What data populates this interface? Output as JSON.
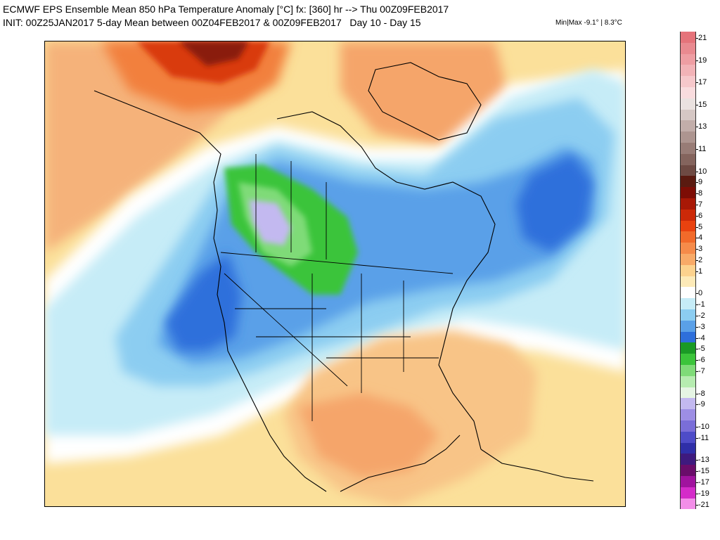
{
  "header": {
    "line1": "ECMWF EPS Ensemble Mean 850 hPa Temperature Anomaly [°C] fx: [360] hr --> Thu 00Z09FEB2017",
    "line2": "INIT: 00Z25JAN2017 5-day Mean between 00Z04FEB2017 & 00Z09FEB2017   Day 10 - Day 15",
    "minmax": "Min|Max -9.1° | 8.3°C"
  },
  "colorbar": {
    "levels": [
      {
        "label": "21",
        "color": "#e5737a"
      },
      {
        "label": "",
        "color": "#e98a90"
      },
      {
        "label": "19",
        "color": "#ee9ea3"
      },
      {
        "label": "",
        "color": "#f2b3b7"
      },
      {
        "label": "17",
        "color": "#f6c8cb"
      },
      {
        "label": "",
        "color": "#f9dcde"
      },
      {
        "label": "15",
        "color": "#eae2e0"
      },
      {
        "label": "",
        "color": "#d5c7c4"
      },
      {
        "label": "13",
        "color": "#c2aeaa"
      },
      {
        "label": "",
        "color": "#ad9590"
      },
      {
        "label": "11",
        "color": "#987c76"
      },
      {
        "label": "",
        "color": "#84645d"
      },
      {
        "label": "10",
        "color": "#6e4a43"
      },
      {
        "label": "9",
        "color": "#5a1a10"
      },
      {
        "label": "8",
        "color": "#7d0d05"
      },
      {
        "label": "7",
        "color": "#a81806"
      },
      {
        "label": "6",
        "color": "#cc2908"
      },
      {
        "label": "5",
        "color": "#e9420f"
      },
      {
        "label": "4",
        "color": "#f16a2a"
      },
      {
        "label": "3",
        "color": "#f58b4a"
      },
      {
        "label": "2",
        "color": "#f8aa68"
      },
      {
        "label": "1",
        "color": "#fcd28e"
      },
      {
        "label": "",
        "color": "#fdeab8"
      },
      {
        "label": "0",
        "color": "#ffffff"
      },
      {
        "label": "-1",
        "color": "#c6ecf7"
      },
      {
        "label": "-2",
        "color": "#8ccdf1"
      },
      {
        "label": "-3",
        "color": "#5aa0e8"
      },
      {
        "label": "-4",
        "color": "#2e6fdb"
      },
      {
        "label": "-5",
        "color": "#1a9a25"
      },
      {
        "label": "-6",
        "color": "#3bc43a"
      },
      {
        "label": "-7",
        "color": "#7fdb78"
      },
      {
        "label": "",
        "color": "#b6ecb0"
      },
      {
        "label": "-8",
        "color": "#e6f5e4"
      },
      {
        "label": "-9",
        "color": "#c3b9f0"
      },
      {
        "label": "",
        "color": "#9d8ee4"
      },
      {
        "label": "-10",
        "color": "#7a6ed8"
      },
      {
        "label": "-11",
        "color": "#4e4cc8"
      },
      {
        "label": "",
        "color": "#2f2fa8"
      },
      {
        "label": "-13",
        "color": "#3e1a7e"
      },
      {
        "label": "-15",
        "color": "#6a0d6a"
      },
      {
        "label": "-17",
        "color": "#a0139e"
      },
      {
        "label": "-19",
        "color": "#d42bc9"
      },
      {
        "label": "-21",
        "color": "#f28ee8"
      }
    ]
  },
  "map": {
    "region": "north-america",
    "warm_color": "#fbe09a",
    "cold_color": "#2e6fdb"
  }
}
